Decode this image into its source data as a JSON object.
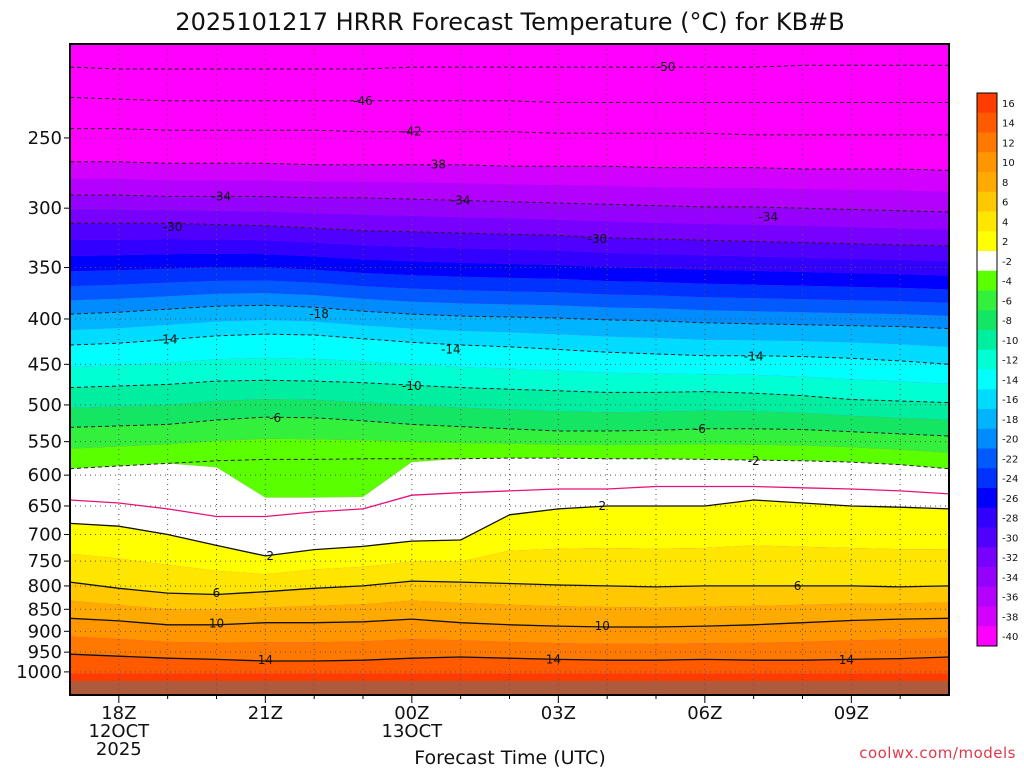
{
  "chart_data": {
    "type": "heatmap",
    "title": "2025101217 HRRR Forecast Temperature (°C) for KB#B",
    "xlabel": "Forecast Time (UTC)",
    "ylabel": "",
    "y_scale": "log",
    "y_inverted": true,
    "ylim": [
      1040,
      200
    ],
    "grid": true,
    "x_ticks": [
      {
        "hour": 0,
        "lines": [
          "18Z",
          "12OCT",
          "2025"
        ]
      },
      {
        "hour": 3,
        "lines": [
          "21Z"
        ]
      },
      {
        "hour": 6,
        "lines": [
          "00Z",
          "13OCT"
        ]
      },
      {
        "hour": 9,
        "lines": [
          "03Z"
        ]
      },
      {
        "hour": 12,
        "lines": [
          "06Z"
        ]
      },
      {
        "hour": 15,
        "lines": [
          "09Z"
        ]
      }
    ],
    "xlim": [
      -1,
      17
    ],
    "y_ticks": [
      250,
      300,
      350,
      400,
      450,
      500,
      550,
      600,
      650,
      700,
      750,
      800,
      850,
      900,
      950,
      1000
    ],
    "colorbar": {
      "labels": [
        "16",
        "14",
        "12",
        "10",
        "8",
        "6",
        "4",
        "2",
        "-2",
        "-4",
        "-6",
        "-8",
        "-10",
        "-12",
        "-14",
        "-16",
        "-18",
        "-20",
        "-22",
        "-24",
        "-26",
        "-28",
        "-30",
        "-32",
        "-34",
        "-36",
        "-38",
        "-40"
      ],
      "colors": [
        "#ff3c00",
        "#ff5a00",
        "#ff7800",
        "#ff9600",
        "#ffaa00",
        "#ffc800",
        "#ffe600",
        "#ffff00",
        "#ffffff",
        "#5aff00",
        "#32f03c",
        "#14e664",
        "#00eea0",
        "#00ffd2",
        "#00ffff",
        "#00dcff",
        "#00b4ff",
        "#008cff",
        "#005aff",
        "#0032ff",
        "#0000ff",
        "#3200ff",
        "#5000ff",
        "#7800ff",
        "#9600ff",
        "#b400ff",
        "#d200ff",
        "#ff00ff"
      ]
    },
    "surface_color": "#b05a3c",
    "isotherms": [
      {
        "label": "-50",
        "p": [
          208,
          209,
          209,
          209,
          209,
          209,
          209,
          208,
          208,
          208,
          208,
          208,
          208,
          208,
          208,
          207,
          207,
          207,
          207
        ],
        "style": "dashed"
      },
      {
        "label": "-46",
        "p": [
          225,
          226,
          227,
          227,
          227,
          227,
          227,
          227,
          227,
          227,
          228,
          228,
          228,
          228,
          228,
          228,
          228,
          228,
          228
        ],
        "style": "dashed"
      },
      {
        "label": "-42",
        "p": [
          244,
          244,
          245,
          245,
          245,
          245,
          246,
          246,
          246,
          246,
          247,
          247,
          247,
          247,
          248,
          248,
          248,
          248,
          248
        ],
        "style": "dashed"
      },
      {
        "label": "-38",
        "p": [
          266,
          266,
          267,
          267,
          267,
          268,
          268,
          268,
          268,
          269,
          269,
          269,
          270,
          270,
          270,
          271,
          271,
          271,
          272
        ],
        "style": "dashed"
      },
      {
        "label": "-34",
        "p": [
          290,
          290,
          291,
          291,
          291,
          292,
          292,
          293,
          294,
          295,
          296,
          297,
          298,
          299,
          299,
          300,
          301,
          302,
          303
        ],
        "style": "dashed"
      },
      {
        "label": "-30",
        "p": [
          312,
          312,
          312,
          313,
          314,
          316,
          318,
          319,
          320,
          321,
          322,
          324,
          325,
          326,
          327,
          328,
          329,
          330,
          331
        ],
        "style": "dashed"
      },
      {
        "label": "-18",
        "p": [
          395,
          393,
          390,
          387,
          386,
          388,
          392,
          395,
          397,
          398,
          399,
          401,
          402,
          404,
          405,
          406,
          407,
          408,
          410
        ],
        "style": "dashed"
      },
      {
        "label": "-14",
        "p": [
          428,
          426,
          422,
          418,
          416,
          417,
          421,
          425,
          428,
          430,
          433,
          436,
          438,
          440,
          440,
          441,
          443,
          446,
          450
        ],
        "style": "dashed"
      },
      {
        "label": "-10",
        "p": [
          478,
          476,
          474,
          470,
          469,
          470,
          472,
          475,
          478,
          480,
          482,
          484,
          484,
          483,
          485,
          488,
          493,
          495,
          497
        ],
        "style": "dashed"
      },
      {
        "label": "-6",
        "p": [
          530,
          528,
          526,
          520,
          516,
          517,
          521,
          526,
          529,
          532,
          535,
          535,
          534,
          532,
          532,
          533,
          536,
          539,
          542
        ],
        "style": "dashed"
      },
      {
        "label": "-2",
        "p": [
          590,
          586,
          582,
          578,
          576,
          576,
          575,
          575,
          575,
          574,
          574,
          575,
          575,
          576,
          577,
          578,
          580,
          584,
          590
        ],
        "style": "dashed"
      },
      {
        "label": "",
        "p": [
          640,
          645,
          655,
          668,
          668,
          660,
          655,
          632,
          628,
          625,
          622,
          622,
          618,
          618,
          618,
          620,
          622,
          625,
          630
        ],
        "style": "magenta"
      },
      {
        "label": "2",
        "p": [
          680,
          685,
          700,
          720,
          740,
          728,
          722,
          712,
          710,
          665,
          655,
          650,
          650,
          650,
          640,
          645,
          650,
          652,
          655
        ],
        "style": "solid"
      },
      {
        "label": "6",
        "p": [
          792,
          805,
          815,
          818,
          812,
          805,
          800,
          790,
          792,
          795,
          798,
          800,
          802,
          800,
          800,
          800,
          800,
          802,
          800
        ],
        "style": "solid"
      },
      {
        "label": "10",
        "p": [
          870,
          876,
          885,
          885,
          880,
          880,
          878,
          872,
          880,
          885,
          888,
          890,
          890,
          888,
          885,
          880,
          875,
          872,
          870
        ],
        "style": "solid"
      },
      {
        "label": "14",
        "p": [
          955,
          960,
          965,
          968,
          972,
          972,
          970,
          965,
          962,
          965,
          968,
          970,
          970,
          968,
          970,
          970,
          968,
          966,
          962
        ],
        "style": "solid"
      }
    ],
    "contour_labels": [
      {
        "text": "-50",
        "hour": 11.2,
        "p": 208
      },
      {
        "text": "-46",
        "hour": 5.0,
        "p": 227
      },
      {
        "text": "-42",
        "hour": 6.0,
        "p": 246
      },
      {
        "text": "-38",
        "hour": 6.5,
        "p": 268
      },
      {
        "text": "-34",
        "hour": 2.1,
        "p": 291
      },
      {
        "text": "-34",
        "hour": 7.0,
        "p": 294
      },
      {
        "text": "-34",
        "hour": 13.3,
        "p": 307
      },
      {
        "text": "-30",
        "hour": 1.1,
        "p": 315
      },
      {
        "text": "-30",
        "hour": 9.8,
        "p": 325
      },
      {
        "text": "-18",
        "hour": 4.1,
        "p": 395
      },
      {
        "text": "-14",
        "hour": 1.0,
        "p": 422
      },
      {
        "text": "-14",
        "hour": 6.8,
        "p": 433
      },
      {
        "text": "-14",
        "hour": 13.0,
        "p": 441
      },
      {
        "text": "-10",
        "hour": 6.0,
        "p": 476
      },
      {
        "text": "-6",
        "hour": 3.2,
        "p": 517
      },
      {
        "text": "-6",
        "hour": 11.9,
        "p": 532
      },
      {
        "text": "-2",
        "hour": 13.0,
        "p": 578
      },
      {
        "text": "2",
        "hour": 9.9,
        "p": 650
      },
      {
        "text": "2",
        "hour": 3.1,
        "p": 740
      },
      {
        "text": "6",
        "hour": 2.0,
        "p": 815
      },
      {
        "text": "6",
        "hour": 13.9,
        "p": 800
      },
      {
        "text": "10",
        "hour": 2.0,
        "p": 882
      },
      {
        "text": "10",
        "hour": 9.9,
        "p": 888
      },
      {
        "text": "14",
        "hour": 3.0,
        "p": 970
      },
      {
        "text": "14",
        "hour": 8.9,
        "p": 968
      },
      {
        "text": "14",
        "hour": 14.9,
        "p": 970
      }
    ],
    "credit": "coolwx.com/models"
  }
}
